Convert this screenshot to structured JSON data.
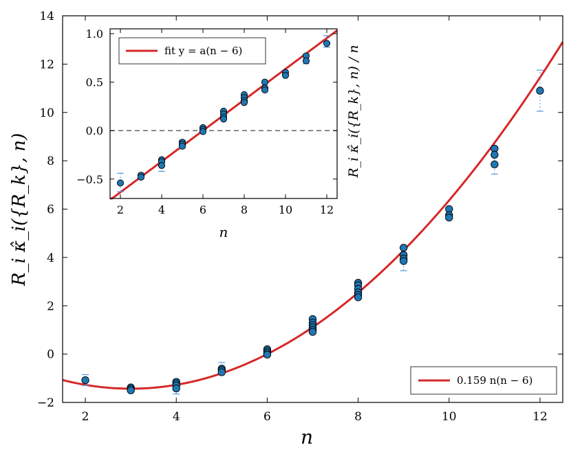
{
  "chart_data": [
    {
      "id": "main",
      "type": "scatter",
      "xlabel": "n",
      "ylabel": "R_i κ̂_i({R_k}, n)",
      "xlim": [
        1.5,
        12.5
      ],
      "ylim": [
        -2,
        14
      ],
      "xticks": [
        "2",
        "4",
        "6",
        "8",
        "10",
        "12"
      ],
      "yticks": [
        "−2",
        "0",
        "2",
        "4",
        "6",
        "8",
        "10",
        "12",
        "14"
      ],
      "legend": {
        "position": "bottom-right",
        "label": "0.159 n(n − 6)"
      },
      "fit": {
        "a": 0.159,
        "formula": "a*n*(n-6)",
        "color": "#d62728"
      },
      "marker_color": "#1f77b4",
      "errorbar_color": "#5599dd",
      "points": [
        [
          2,
          -1.08
        ],
        [
          3,
          -1.38
        ],
        [
          3,
          -1.44
        ],
        [
          3,
          -1.5
        ],
        [
          4,
          -1.15
        ],
        [
          4,
          -1.22
        ],
        [
          4,
          -1.3
        ],
        [
          4,
          -1.42
        ],
        [
          5,
          -0.6
        ],
        [
          5,
          -0.67
        ],
        [
          5,
          -0.75
        ],
        [
          6,
          0.2
        ],
        [
          6,
          0.12
        ],
        [
          6,
          0.05
        ],
        [
          6,
          -0.02
        ],
        [
          7,
          1.45
        ],
        [
          7,
          1.3
        ],
        [
          7,
          1.2
        ],
        [
          7,
          1.1
        ],
        [
          7,
          1.0
        ],
        [
          7,
          0.92
        ],
        [
          8,
          2.95
        ],
        [
          8,
          2.85
        ],
        [
          8,
          2.7
        ],
        [
          8,
          2.55
        ],
        [
          8,
          2.45
        ],
        [
          8,
          2.35
        ],
        [
          9,
          4.4
        ],
        [
          9,
          4.1
        ],
        [
          9,
          3.95
        ],
        [
          9,
          3.85
        ],
        [
          10,
          6.0
        ],
        [
          10,
          5.75
        ],
        [
          10,
          5.65
        ],
        [
          11,
          8.5
        ],
        [
          11,
          8.25
        ],
        [
          11,
          7.85
        ],
        [
          12,
          10.9
        ]
      ],
      "errorbars": [
        [
          2,
          -1.3,
          -0.85
        ],
        [
          4,
          -1.65,
          -1.05
        ],
        [
          5,
          -0.8,
          -0.35
        ],
        [
          9,
          3.45,
          4.2
        ],
        [
          11,
          7.45,
          8.6
        ],
        [
          12,
          10.05,
          11.75
        ]
      ]
    },
    {
      "id": "inset",
      "type": "scatter",
      "xlabel": "n",
      "ylabel": "R_i κ̂_i({R_k}, n) / n",
      "xlim": [
        1.5,
        12.5
      ],
      "ylim": [
        -0.7,
        1.05
      ],
      "xticks": [
        "2",
        "4",
        "6",
        "8",
        "10",
        "12"
      ],
      "yticks": [
        "−0.5",
        "0.0",
        "0.5",
        "1.0"
      ],
      "legend": {
        "position": "top-left",
        "label": "fit y = a(n − 6)"
      },
      "fit": {
        "a": 0.159,
        "formula": "a*(n-6)",
        "color": "#d62728"
      },
      "reference_line": {
        "y": 0.0,
        "style": "dashed"
      },
      "points": [
        [
          2,
          -0.54
        ],
        [
          3,
          -0.46
        ],
        [
          3,
          -0.48
        ],
        [
          4,
          -0.3
        ],
        [
          4,
          -0.32
        ],
        [
          4,
          -0.36
        ],
        [
          5,
          -0.12
        ],
        [
          5,
          -0.14
        ],
        [
          5,
          -0.16
        ],
        [
          6,
          0.03
        ],
        [
          6,
          0.01
        ],
        [
          6,
          -0.01
        ],
        [
          7,
          0.2
        ],
        [
          7,
          0.17
        ],
        [
          7,
          0.14
        ],
        [
          7,
          0.12
        ],
        [
          8,
          0.37
        ],
        [
          8,
          0.34
        ],
        [
          8,
          0.31
        ],
        [
          8,
          0.29
        ],
        [
          9,
          0.5
        ],
        [
          9,
          0.44
        ],
        [
          9,
          0.42
        ],
        [
          10,
          0.6
        ],
        [
          10,
          0.57
        ],
        [
          11,
          0.77
        ],
        [
          11,
          0.72
        ],
        [
          12,
          0.9
        ]
      ],
      "errorbars": [
        [
          2,
          -0.63,
          -0.44
        ],
        [
          4,
          -0.42,
          -0.3
        ],
        [
          5,
          -0.18,
          -0.1
        ],
        [
          11,
          0.69,
          0.79
        ],
        [
          12,
          0.86,
          0.98
        ]
      ]
    }
  ]
}
